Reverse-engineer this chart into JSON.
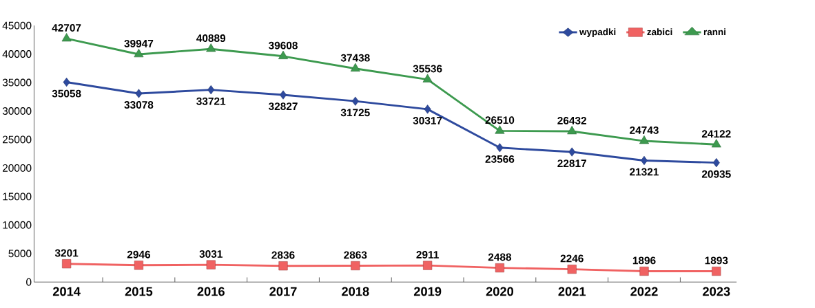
{
  "chart_data": {
    "type": "line",
    "categories": [
      "2014",
      "2015",
      "2016",
      "2017",
      "2018",
      "2019",
      "2020",
      "2021",
      "2022",
      "2023"
    ],
    "series": [
      {
        "name": "wypadki",
        "color": "#2e4a9e",
        "marker": "diamond",
        "values": [
          35058,
          33078,
          33721,
          32827,
          31725,
          30317,
          23566,
          22817,
          21321,
          20935
        ]
      },
      {
        "name": "zabici",
        "color": "#f06262",
        "marker": "square",
        "values": [
          3201,
          2946,
          3031,
          2836,
          2863,
          2911,
          2488,
          2246,
          1896,
          1893
        ]
      },
      {
        "name": "ranni",
        "color": "#3d9a4f",
        "marker": "triangle",
        "values": [
          42707,
          39947,
          40889,
          39608,
          37438,
          35536,
          26510,
          26432,
          24743,
          24122
        ]
      }
    ],
    "ylim": [
      0,
      45000
    ],
    "yticks": [
      0,
      5000,
      10000,
      15000,
      20000,
      25000,
      30000,
      35000,
      40000,
      45000
    ],
    "legend": "top right",
    "data_labels": true,
    "grid": false
  }
}
